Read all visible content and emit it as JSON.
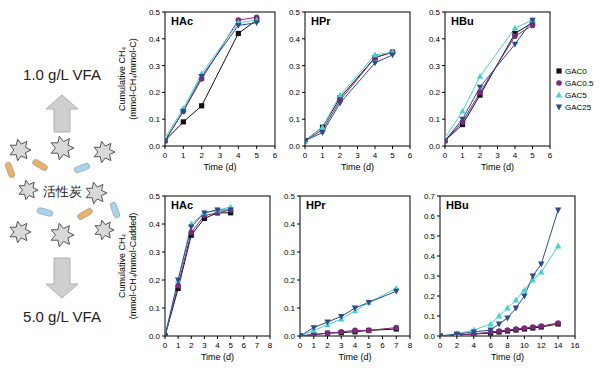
{
  "figure": {
    "labels": [
      "1.0 g/L VFA",
      "活性炭",
      "5.0 g/L VFA"
    ]
  },
  "chart_data": [
    {
      "type": "line",
      "title": "HAc",
      "x": [
        0,
        1,
        2,
        4,
        5
      ],
      "xlim": [
        0,
        6
      ],
      "xticks": [
        0,
        1,
        2,
        3,
        4,
        5,
        6
      ],
      "ylim": [
        0,
        0.5
      ],
      "yticks": [
        {
          "value": 0,
          "label": "0.0"
        },
        0.1,
        0.2,
        0.3,
        0.4,
        0.5
      ],
      "x_label": "Time (d)",
      "y_label": "Cumulative CH₄ (mmol-CH₄/mmol-C)",
      "series": [
        {
          "name": "GAC0",
          "color": "#111111",
          "marker": "square",
          "line_style": "solid",
          "values": [
            0.02,
            0.09,
            0.15,
            0.42,
            0.47
          ]
        },
        {
          "name": "GAC0.5",
          "color": "#7b2a7b",
          "marker": "circle",
          "line_style": "solid",
          "values": [
            0.02,
            0.13,
            0.25,
            0.47,
            0.48
          ]
        },
        {
          "name": "GAC5",
          "color": "#48d1d1",
          "marker": "triangle-up",
          "line_style": "solid",
          "values": [
            0.03,
            0.14,
            0.27,
            0.46,
            0.47
          ]
        },
        {
          "name": "GAC25",
          "color": "#2c4a8c",
          "marker": "triangle-down",
          "line_style": "solid",
          "values": [
            0.02,
            0.13,
            0.26,
            0.45,
            0.46
          ]
        }
      ]
    },
    {
      "type": "line",
      "title": "HPr",
      "x": [
        0,
        1,
        2,
        4,
        5
      ],
      "xlim": [
        0,
        6
      ],
      "xticks": [
        0,
        1,
        2,
        3,
        4,
        5,
        6
      ],
      "ylim": [
        0,
        0.5
      ],
      "yticks": [
        {
          "value": 0,
          "label": "0.0"
        },
        0.1,
        0.2,
        0.3,
        0.4,
        0.5
      ],
      "x_label": "Time (d)",
      "series": [
        {
          "name": "GAC0",
          "color": "#111111",
          "marker": "square",
          "line_style": "solid",
          "values": [
            0.02,
            0.07,
            0.18,
            0.33,
            0.35
          ]
        },
        {
          "name": "GAC0.5",
          "color": "#7b2a7b",
          "marker": "circle",
          "line_style": "solid",
          "values": [
            0.02,
            0.06,
            0.17,
            0.33,
            0.35
          ]
        },
        {
          "name": "GAC5",
          "color": "#48d1d1",
          "marker": "triangle-up",
          "line_style": "solid",
          "values": [
            0.02,
            0.07,
            0.19,
            0.34,
            0.35
          ]
        },
        {
          "name": "GAC25",
          "color": "#2c4a8c",
          "marker": "triangle-down",
          "line_style": "solid",
          "values": [
            0.02,
            0.05,
            0.16,
            0.31,
            0.34
          ]
        }
      ]
    },
    {
      "type": "line",
      "title": "HBu",
      "x": [
        0,
        1,
        2,
        4,
        5
      ],
      "xlim": [
        0,
        6
      ],
      "xticks": [
        0,
        1,
        2,
        3,
        4,
        5,
        6
      ],
      "ylim": [
        0,
        0.5
      ],
      "yticks": [
        {
          "value": 0,
          "label": "0.0"
        },
        0.1,
        0.2,
        0.3,
        0.4,
        0.5
      ],
      "x_label": "Time (d)",
      "legend": "right",
      "series": [
        {
          "name": "GAC0",
          "color": "#111111",
          "marker": "square",
          "line_style": "solid",
          "values": [
            0.02,
            0.08,
            0.19,
            0.42,
            0.46
          ]
        },
        {
          "name": "GAC0.5",
          "color": "#7b2a7b",
          "marker": "circle",
          "line_style": "solid",
          "values": [
            0.02,
            0.09,
            0.2,
            0.41,
            0.45
          ]
        },
        {
          "name": "GAC5",
          "color": "#48d1d1",
          "marker": "triangle-up",
          "line_style": "solid",
          "values": [
            0.03,
            0.13,
            0.26,
            0.44,
            0.47
          ]
        },
        {
          "name": "GAC25",
          "color": "#2c4a8c",
          "marker": "triangle-down",
          "line_style": "solid",
          "values": [
            0.02,
            0.1,
            0.22,
            0.38,
            0.47
          ]
        }
      ]
    },
    {
      "type": "line",
      "title": "HAc",
      "x": [
        0,
        1,
        2,
        3,
        4,
        5
      ],
      "xlim": [
        0,
        8
      ],
      "xticks": [
        0,
        1,
        2,
        3,
        4,
        5,
        6,
        7,
        8
      ],
      "ylim": [
        0,
        0.5
      ],
      "yticks": [
        {
          "value": 0,
          "label": "0.0"
        },
        0.1,
        0.2,
        0.3,
        0.4,
        0.5
      ],
      "x_label": "Time (d)",
      "y_label": "Cumulative CH₄ (mmol-CH₄/mmol-Cadded)",
      "series": [
        {
          "name": "GAC0",
          "color": "#111111",
          "marker": "square",
          "line_style": "solid",
          "values": [
            0,
            0.17,
            0.36,
            0.42,
            0.44,
            0.44
          ]
        },
        {
          "name": "GAC0.5",
          "color": "#7b2a7b",
          "marker": "circle",
          "line_style": "solid",
          "values": [
            0,
            0.18,
            0.37,
            0.43,
            0.44,
            0.45
          ]
        },
        {
          "name": "GAC5",
          "color": "#48d1d1",
          "marker": "triangle-up",
          "line_style": "solid",
          "values": [
            0,
            0.2,
            0.4,
            0.44,
            0.45,
            0.46
          ]
        },
        {
          "name": "GAC25",
          "color": "#2c4a8c",
          "marker": "triangle-down",
          "line_style": "solid",
          "values": [
            0,
            0.2,
            0.39,
            0.44,
            0.45,
            0.45
          ]
        }
      ]
    },
    {
      "type": "line",
      "title": "HPr",
      "x": [
        0,
        1,
        2,
        3,
        4,
        5,
        7
      ],
      "xlim": [
        0,
        8
      ],
      "xticks": [
        0,
        1,
        2,
        3,
        4,
        5,
        6,
        7,
        8
      ],
      "ylim": [
        0,
        0.5
      ],
      "yticks": [
        {
          "value": 0,
          "label": "0.0"
        },
        0.1,
        0.2,
        0.3,
        0.4,
        0.5
      ],
      "x_label": "Time (d)",
      "series": [
        {
          "name": "GAC0",
          "color": "#111111",
          "marker": "square",
          "line_style": "solid",
          "values": [
            0,
            0.005,
            0.01,
            0.012,
            0.015,
            0.02,
            0.025
          ]
        },
        {
          "name": "GAC0.5",
          "color": "#7b2a7b",
          "marker": "circle",
          "line_style": "solid",
          "values": [
            0,
            0.005,
            0.01,
            0.015,
            0.02,
            0.02,
            0.03
          ]
        },
        {
          "name": "GAC5",
          "color": "#48d1d1",
          "marker": "triangle-up",
          "line_style": "solid",
          "values": [
            0,
            0.02,
            0.04,
            0.06,
            0.09,
            0.12,
            0.17
          ]
        },
        {
          "name": "GAC25",
          "color": "#2c4a8c",
          "marker": "triangle-down",
          "line_style": "solid",
          "values": [
            0,
            0.03,
            0.05,
            0.07,
            0.1,
            0.12,
            0.16
          ]
        }
      ]
    },
    {
      "type": "line",
      "title": "HBu",
      "x": [
        0,
        2,
        4,
        6,
        7,
        8,
        9,
        10,
        11,
        12,
        14
      ],
      "xlim": [
        0,
        16
      ],
      "xticks": [
        0,
        2,
        4,
        6,
        8,
        10,
        12,
        14,
        16
      ],
      "ylim": [
        0,
        0.7
      ],
      "yticks": [
        {
          "value": 0,
          "label": "0.0"
        },
        0.1,
        0.2,
        0.3,
        0.4,
        0.5,
        0.6,
        0.7
      ],
      "x_label": "Time (d)",
      "series": [
        {
          "name": "GAC0",
          "color": "#111111",
          "marker": "square",
          "line_style": "solid",
          "values": [
            0,
            0.005,
            0.01,
            0.015,
            0.02,
            0.025,
            0.03,
            0.035,
            0.04,
            0.045,
            0.06
          ]
        },
        {
          "name": "GAC0.5",
          "color": "#7b2a7b",
          "marker": "circle",
          "line_style": "solid",
          "values": [
            0,
            0.005,
            0.01,
            0.02,
            0.025,
            0.03,
            0.035,
            0.04,
            0.045,
            0.05,
            0.065
          ]
        },
        {
          "name": "GAC5",
          "color": "#48d1d1",
          "marker": "triangle-up",
          "line_style": "solid",
          "values": [
            0,
            0.01,
            0.03,
            0.06,
            0.1,
            0.14,
            0.18,
            0.23,
            0.28,
            0.32,
            0.45
          ]
        },
        {
          "name": "GAC25",
          "color": "#2c4a8c",
          "marker": "triangle-down",
          "line_style": "solid",
          "values": [
            0,
            0.01,
            0.02,
            0.03,
            0.06,
            0.09,
            0.14,
            0.2,
            0.3,
            0.36,
            0.63
          ]
        }
      ]
    }
  ]
}
